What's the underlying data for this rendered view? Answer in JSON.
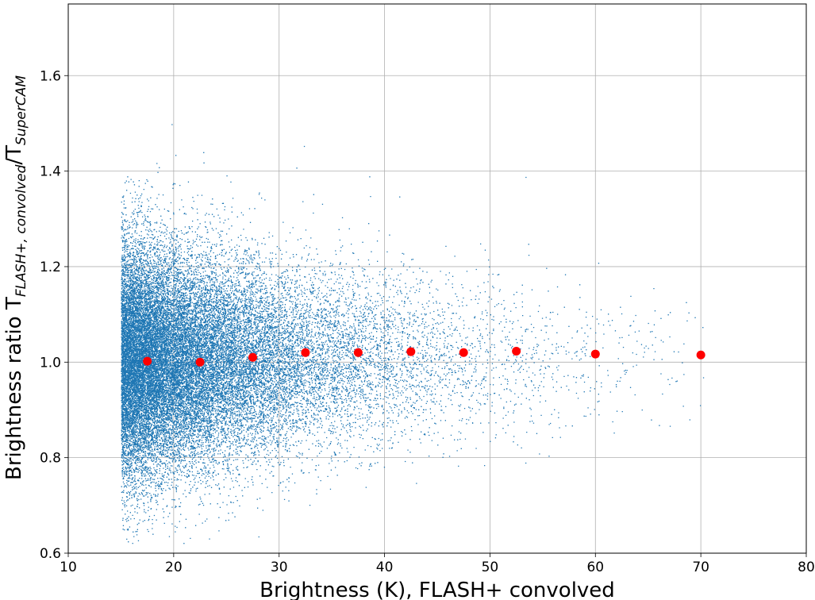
{
  "chart_data": {
    "type": "scatter",
    "title": "",
    "xlabel": "Brightness (K), FLASH+ convolved",
    "ylabel": {
      "main": "Brightness ratio T",
      "sub1": "FLASH+, convolved",
      "slash": "/T",
      "sub2": "SuperCAM"
    },
    "xlim": [
      10,
      80
    ],
    "ylim": [
      0.6,
      1.75
    ],
    "xticks": [
      10,
      20,
      30,
      40,
      50,
      60,
      70,
      80
    ],
    "xtick_labels": [
      "10",
      "20",
      "30",
      "40",
      "50",
      "60",
      "70",
      "80"
    ],
    "yticks": [
      0.6,
      0.8,
      1.0,
      1.2,
      1.4,
      1.6
    ],
    "ytick_labels": [
      "0.6",
      "0.8",
      "1.0",
      "1.2",
      "1.4",
      "1.6"
    ],
    "grid": true,
    "scatter_color": "#1f77b4",
    "binned_color": "#ff0000",
    "binned_points": {
      "x": [
        17.5,
        22.5,
        27.5,
        32.5,
        37.5,
        42.5,
        47.5,
        52.5,
        60,
        70
      ],
      "y": [
        1.002,
        1.0,
        1.01,
        1.02,
        1.02,
        1.022,
        1.02,
        1.023,
        1.017,
        1.015
      ]
    },
    "scatter_distribution": {
      "x_min": 15,
      "x_max": 71,
      "center": 1.0,
      "approx_count": 30000
    }
  }
}
